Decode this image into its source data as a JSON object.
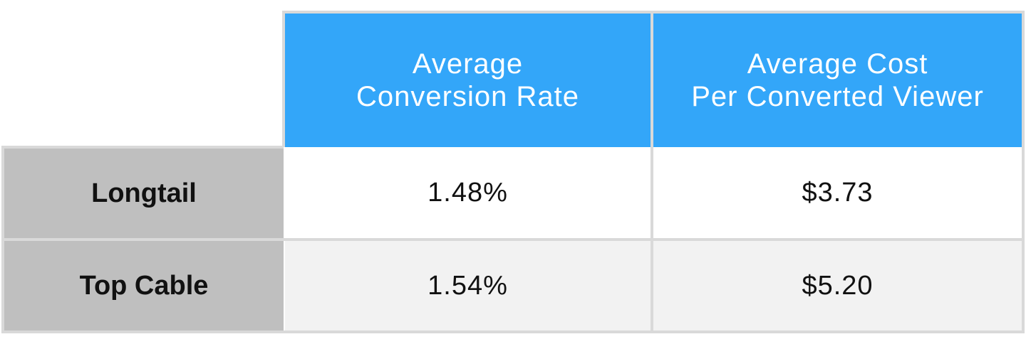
{
  "chart_data": {
    "type": "table",
    "columns": [
      {
        "line1": "Average",
        "line2": "Conversion Rate"
      },
      {
        "line1": "Average Cost",
        "line2": "Per Converted Viewer"
      }
    ],
    "rows": [
      {
        "label": "Longtail",
        "values": [
          "1.48%",
          "$3.73"
        ]
      },
      {
        "label": "Top Cable",
        "values": [
          "1.54%",
          "$5.20"
        ]
      }
    ]
  },
  "colors": {
    "header_bg": "#33a6f9",
    "row_label_bg": "#bfbfbf",
    "alt_row_bg": "#f2f2f2",
    "border": "#d9d9d9"
  }
}
